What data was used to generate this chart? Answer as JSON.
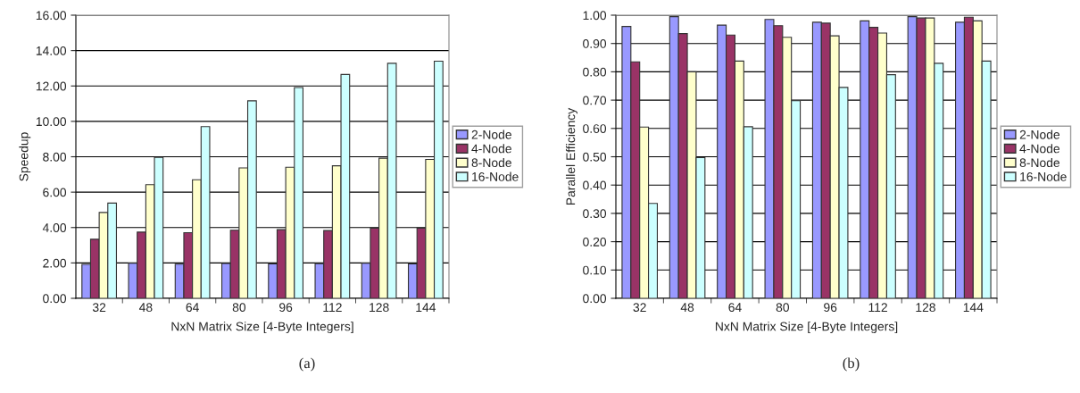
{
  "chart_data": [
    {
      "type": "bar",
      "xlabel": "NxN Matrix Size [4-Byte Integers]",
      "ylabel": "Speedup",
      "categories": [
        "32",
        "48",
        "64",
        "80",
        "96",
        "112",
        "128",
        "144"
      ],
      "series": [
        {
          "name": "2-Node",
          "color": "#9999ff",
          "values": [
            1.92,
            1.99,
            1.93,
            1.97,
            1.95,
            1.96,
            1.99,
            1.95
          ]
        },
        {
          "name": "4-Node",
          "color": "#993366",
          "values": [
            3.34,
            3.74,
            3.71,
            3.85,
            3.88,
            3.83,
            3.97,
            3.97
          ]
        },
        {
          "name": "8-Node",
          "color": "#ffffcc",
          "values": [
            4.85,
            6.42,
            6.7,
            7.37,
            7.41,
            7.49,
            7.92,
            7.85
          ]
        },
        {
          "name": "16-Node",
          "color": "#ccffff",
          "values": [
            5.38,
            7.96,
            9.7,
            11.16,
            11.91,
            12.65,
            13.28,
            13.4
          ]
        }
      ],
      "ylim": [
        0,
        16
      ],
      "yticks": [
        {
          "value": 0,
          "label": "0.00"
        },
        {
          "value": 2,
          "label": "2.00"
        },
        {
          "value": 4,
          "label": "4.00"
        },
        {
          "value": 6,
          "label": "6.00"
        },
        {
          "value": 8,
          "label": "8.00"
        },
        {
          "value": 10,
          "label": "10.00"
        },
        {
          "value": 12,
          "label": "12.00"
        },
        {
          "value": 14,
          "label": "14.00"
        },
        {
          "value": 16,
          "label": "16.00"
        }
      ],
      "grid": "y",
      "legend": "right",
      "annotations": [
        "(a)"
      ]
    },
    {
      "type": "bar",
      "xlabel": "NxN Matrix Size [4-Byte Integers]",
      "ylabel": "Parallel Efficiency",
      "categories": [
        "32",
        "48",
        "64",
        "80",
        "96",
        "112",
        "128",
        "144"
      ],
      "series": [
        {
          "name": "2-Node",
          "color": "#9999ff",
          "values": [
            0.96,
            0.995,
            0.965,
            0.985,
            0.975,
            0.98,
            0.995,
            0.975
          ]
        },
        {
          "name": "4-Node",
          "color": "#993366",
          "values": [
            0.835,
            0.935,
            0.93,
            0.963,
            0.972,
            0.957,
            0.99,
            0.993
          ]
        },
        {
          "name": "8-Node",
          "color": "#ffffcc",
          "values": [
            0.605,
            0.8,
            0.838,
            0.922,
            0.927,
            0.937,
            0.99,
            0.98
          ]
        },
        {
          "name": "16-Node",
          "color": "#ccffff",
          "values": [
            0.335,
            0.497,
            0.606,
            0.698,
            0.745,
            0.79,
            0.83,
            0.838
          ]
        }
      ],
      "ylim": [
        0,
        1
      ],
      "yticks": [
        {
          "value": 0,
          "label": "0.00"
        },
        {
          "value": 0.1,
          "label": "0.10"
        },
        {
          "value": 0.2,
          "label": "0.20"
        },
        {
          "value": 0.3,
          "label": "0.30"
        },
        {
          "value": 0.4,
          "label": "0.40"
        },
        {
          "value": 0.5,
          "label": "0.50"
        },
        {
          "value": 0.6,
          "label": "0.60"
        },
        {
          "value": 0.7,
          "label": "0.70"
        },
        {
          "value": 0.8,
          "label": "0.80"
        },
        {
          "value": 0.9,
          "label": "0.90"
        },
        {
          "value": 1,
          "label": "1.00"
        }
      ],
      "grid": "y",
      "legend": "right",
      "annotations": [
        "(b)"
      ]
    }
  ]
}
